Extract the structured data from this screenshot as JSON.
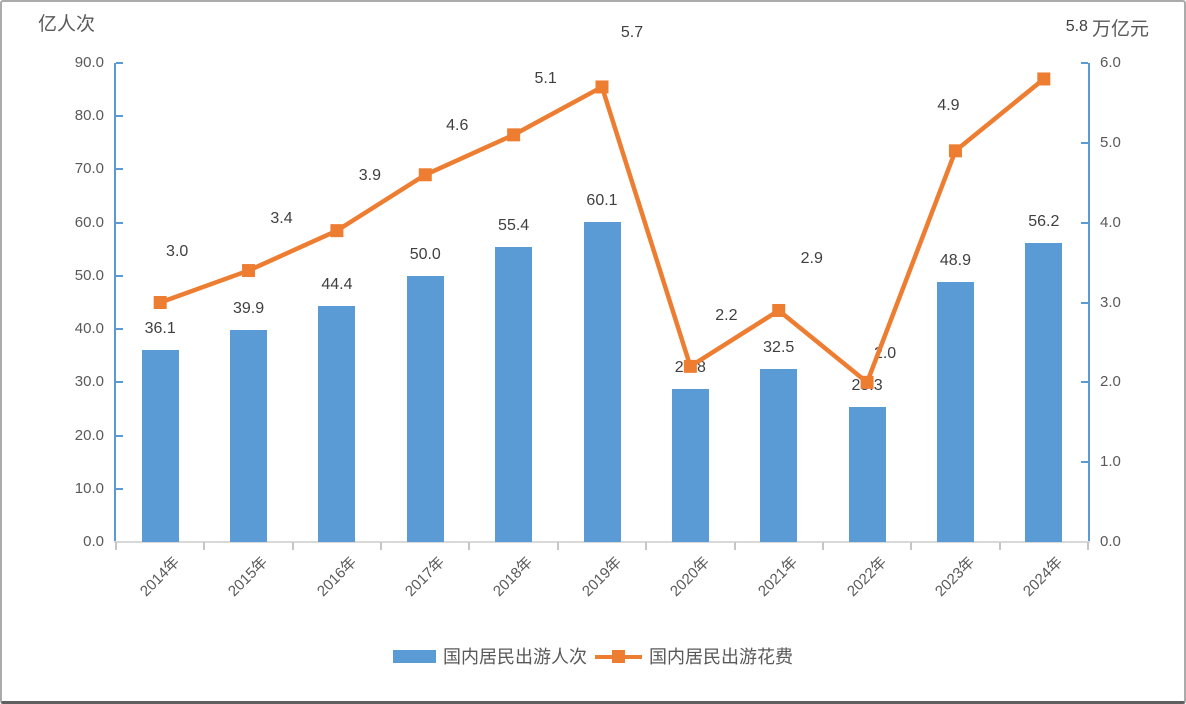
{
  "chart_data": {
    "type": "bar+line",
    "title": "",
    "categories": [
      "2014年",
      "2015年",
      "2016年",
      "2017年",
      "2018年",
      "2019年",
      "2020年",
      "2021年",
      "2022年",
      "2023年",
      "2024年"
    ],
    "series": [
      {
        "name": "国内居民出游人次",
        "type": "bar",
        "axis": "left",
        "unit": "亿人次",
        "color": "#5B9BD5",
        "values": [
          36.1,
          39.9,
          44.4,
          50.0,
          55.4,
          60.1,
          28.8,
          32.5,
          25.3,
          48.9,
          56.2
        ],
        "labels": [
          "36.1",
          "39.9",
          "44.4",
          "50.0",
          "55.4",
          "60.1",
          "28.8",
          "32.5",
          "25.3",
          "48.9",
          "56.2"
        ]
      },
      {
        "name": "国内居民出游花费",
        "type": "line",
        "axis": "right",
        "unit": "万亿元",
        "color": "#ED7D31",
        "values": [
          3.0,
          3.4,
          3.9,
          4.6,
          5.1,
          5.7,
          2.2,
          2.9,
          2.0,
          4.9,
          5.8
        ],
        "labels": [
          "3.0",
          "3.4",
          "3.9",
          "4.6",
          "5.1",
          "5.7",
          "2.2",
          "2.9",
          "2.0",
          "4.9",
          "5.8"
        ]
      }
    ],
    "left_axis": {
      "title": "亿人次",
      "min": 0,
      "max": 90,
      "tick_labels": [
        "0.0",
        "10.0",
        "20.0",
        "30.0",
        "40.0",
        "50.0",
        "60.0",
        "70.0",
        "80.0",
        "90.0"
      ]
    },
    "right_axis": {
      "title": "万亿元",
      "min": 0,
      "max": 6,
      "tick_labels": [
        "0.0",
        "1.0",
        "2.0",
        "3.0",
        "4.0",
        "5.0",
        "6.0"
      ]
    },
    "legend": {
      "position": "bottom",
      "entries": [
        "国内居民出游人次",
        "国内居民出游花费"
      ]
    },
    "grid": false
  },
  "colors": {
    "bar": "#5B9BD5",
    "line": "#ED7D31",
    "axis_line": "#5B9BD5",
    "x_axis_line": "#D9D9D9",
    "x_tick": "#C6C6C6",
    "tick_text": "#595959",
    "data_label_text": "#404040"
  }
}
